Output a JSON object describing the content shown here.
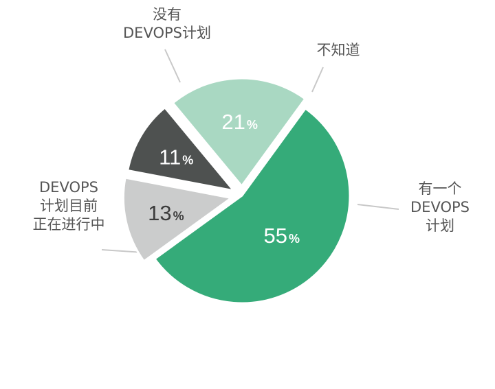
{
  "chart_data": {
    "type": "pie",
    "slices": [
      {
        "label_lines": [
          "DEVOPS",
          "计划目前",
          "正在进行中"
        ],
        "value": 55,
        "value_text": "55",
        "unit": "%",
        "color": "#35ab79",
        "text_color": "#ffffff"
      },
      {
        "label_lines": [
          "没有",
          "DEVOPS计划"
        ],
        "value": 13,
        "value_text": "13",
        "unit": "%",
        "color": "#cbcccc",
        "text_color": "#3c3c3c"
      },
      {
        "label_lines": [
          "不知道"
        ],
        "value": 11,
        "value_text": "11",
        "unit": "%",
        "color": "#4e5150",
        "text_color": "#ffffff"
      },
      {
        "label_lines": [
          "有一个",
          "DEVOPS",
          "计划"
        ],
        "value": 21,
        "value_text": "21",
        "unit": "%",
        "color": "#a9d8c2",
        "text_color": "#ffffff"
      }
    ],
    "exploded": true,
    "leader_line_color": "#c8c8c8"
  }
}
